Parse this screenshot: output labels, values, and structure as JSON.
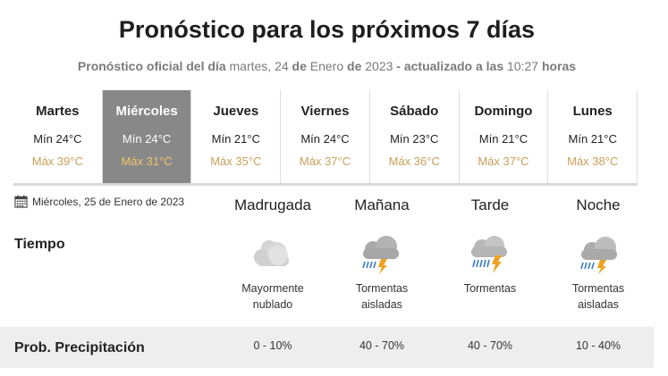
{
  "header": {
    "title": "Pronóstico para los próximos 7 días",
    "sub_label": "Pronóstico oficial del día",
    "sub_date_day": "martes, 24",
    "sub_de1": "de",
    "sub_month": "Enero",
    "sub_de2": "de",
    "sub_year": "2023",
    "sub_updated": "- actualizado a las",
    "sub_time": "10:27",
    "sub_horas": "horas"
  },
  "days": [
    {
      "name": "Martes",
      "min": "Mín 24°C",
      "max": "Máx 39°C"
    },
    {
      "name": "Miércoles",
      "min": "Mín 24°C",
      "max": "Máx 31°C"
    },
    {
      "name": "Jueves",
      "min": "Mín 21°C",
      "max": "Máx 35°C"
    },
    {
      "name": "Viernes",
      "min": "Mín 24°C",
      "max": "Máx 37°C"
    },
    {
      "name": "Sábado",
      "min": "Mín 23°C",
      "max": "Máx 36°C"
    },
    {
      "name": "Domingo",
      "min": "Mín 21°C",
      "max": "Máx 37°C"
    },
    {
      "name": "Lunes",
      "min": "Mín 21°C",
      "max": "Máx 38°C"
    }
  ],
  "detail": {
    "date": "Miércoles, 25 de Enero de 2023",
    "calendar_icon": "calendar-icon",
    "tiempo_label": "Tiempo",
    "precip_label": "Prob. Precipitación",
    "periods": [
      {
        "name": "Madrugada",
        "icon": "cloudy-icon",
        "desc1": "Mayormente",
        "desc2": "nublado",
        "precip": "0 - 10%"
      },
      {
        "name": "Mañana",
        "icon": "storm-icon",
        "desc1": "Tormentas",
        "desc2": "aisladas",
        "precip": "40 - 70%"
      },
      {
        "name": "Tarde",
        "icon": "storm-icon",
        "desc1": "Tormentas",
        "desc2": "",
        "precip": "40 - 70%"
      },
      {
        "name": "Noche",
        "icon": "storm-icon",
        "desc1": "Tormentas",
        "desc2": "aisladas",
        "precip": "10 - 40%"
      }
    ]
  },
  "colors": {
    "active_day_bg": "#888888",
    "max_temp": "#c8a05a",
    "precip_band": "#eeeeee"
  }
}
